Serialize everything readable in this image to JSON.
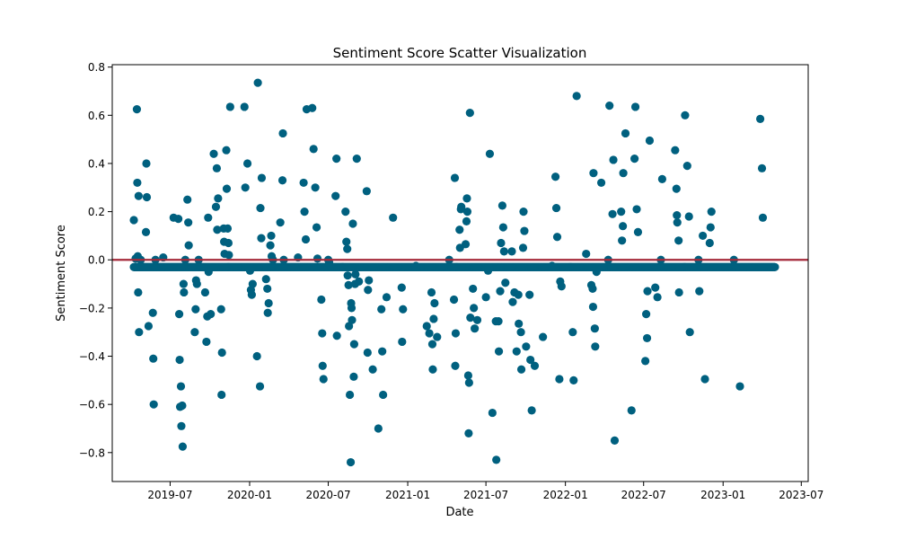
{
  "chart_data": {
    "type": "scatter",
    "title": "Sentiment Score Scatter Visualization",
    "xlabel": "Date",
    "ylabel": "Sentiment Score",
    "xlim": [
      "2019-02-17",
      "2023-07-17"
    ],
    "ylim": [
      -0.92,
      0.81
    ],
    "x_ticks": [
      "2019-07",
      "2020-01",
      "2020-07",
      "2021-01",
      "2021-07",
      "2022-01",
      "2022-07",
      "2023-01",
      "2023-07"
    ],
    "y_ticks": [
      0.8,
      0.6,
      0.4,
      0.2,
      0.0,
      -0.2,
      -0.4,
      -0.6,
      -0.8
    ],
    "y_tick_labels": [
      "0.8",
      "0.6",
      "0.4",
      "0.2",
      "0.0",
      "−0.2",
      "−0.4",
      "−0.6",
      "−0.8"
    ],
    "grid": false,
    "reference_line": {
      "y": 0.0
    },
    "colors": {
      "marker": "#00607f",
      "reference_line": "#a52a3a"
    },
    "baseline_band": {
      "from": "2019-04-08",
      "to": "2023-05-01",
      "y": -0.03
    },
    "series": [
      {
        "points": [
          [
            "2019-04-08",
            0.165
          ],
          [
            "2019-04-12",
            0.005
          ],
          [
            "2019-04-15",
            0.625
          ],
          [
            "2019-04-16",
            0.32
          ],
          [
            "2019-04-17",
            0.015
          ],
          [
            "2019-04-18",
            -0.135
          ],
          [
            "2019-04-19",
            0.265
          ],
          [
            "2019-04-20",
            -0.3
          ],
          [
            "2019-04-24",
            0.0
          ],
          [
            "2019-05-06",
            0.115
          ],
          [
            "2019-05-07",
            0.4
          ],
          [
            "2019-05-08",
            0.26
          ],
          [
            "2019-05-12",
            -0.275
          ],
          [
            "2019-05-22",
            -0.22
          ],
          [
            "2019-05-23",
            -0.41
          ],
          [
            "2019-05-24",
            -0.6
          ],
          [
            "2019-05-28",
            0.0
          ],
          [
            "2019-06-15",
            0.01
          ],
          [
            "2019-07-09",
            0.175
          ],
          [
            "2019-07-20",
            0.17
          ],
          [
            "2019-07-22",
            -0.225
          ],
          [
            "2019-07-23",
            -0.415
          ],
          [
            "2019-07-24",
            -0.61
          ],
          [
            "2019-07-26",
            -0.525
          ],
          [
            "2019-07-27",
            -0.69
          ],
          [
            "2019-07-29",
            -0.605
          ],
          [
            "2019-07-30",
            -0.775
          ],
          [
            "2019-08-01",
            -0.1
          ],
          [
            "2019-08-02",
            -0.135
          ],
          [
            "2019-08-05",
            0.0
          ],
          [
            "2019-08-10",
            0.25
          ],
          [
            "2019-08-12",
            0.155
          ],
          [
            "2019-08-13",
            0.06
          ],
          [
            "2019-08-27",
            -0.3
          ],
          [
            "2019-08-29",
            -0.205
          ],
          [
            "2019-08-30",
            -0.085
          ],
          [
            "2019-09-01",
            -0.1
          ],
          [
            "2019-09-05",
            0.0
          ],
          [
            "2019-09-20",
            -0.135
          ],
          [
            "2019-09-23",
            -0.34
          ],
          [
            "2019-09-25",
            -0.235
          ],
          [
            "2019-09-27",
            0.175
          ],
          [
            "2019-09-28",
            -0.05
          ],
          [
            "2019-10-03",
            -0.225
          ],
          [
            "2019-10-10",
            0.44
          ],
          [
            "2019-10-15",
            0.22
          ],
          [
            "2019-10-17",
            0.38
          ],
          [
            "2019-10-18",
            0.125
          ],
          [
            "2019-10-20",
            0.255
          ],
          [
            "2019-10-27",
            -0.205
          ],
          [
            "2019-10-28",
            -0.56
          ],
          [
            "2019-10-29",
            -0.385
          ],
          [
            "2019-11-02",
            0.13
          ],
          [
            "2019-11-03",
            0.075
          ],
          [
            "2019-11-04",
            0.025
          ],
          [
            "2019-11-08",
            0.455
          ],
          [
            "2019-11-09",
            0.295
          ],
          [
            "2019-11-11",
            0.13
          ],
          [
            "2019-11-13",
            0.07
          ],
          [
            "2019-11-14",
            0.02
          ],
          [
            "2019-11-17",
            0.635
          ],
          [
            "2019-12-20",
            0.635
          ],
          [
            "2019-12-22",
            0.3
          ],
          [
            "2019-12-27",
            0.4
          ],
          [
            "2020-01-02",
            -0.045
          ],
          [
            "2020-01-04",
            -0.125
          ],
          [
            "2020-01-06",
            -0.145
          ],
          [
            "2020-01-08",
            -0.1
          ],
          [
            "2020-01-18",
            -0.4
          ],
          [
            "2020-01-20",
            0.735
          ],
          [
            "2020-01-25",
            -0.525
          ],
          [
            "2020-01-26",
            0.215
          ],
          [
            "2020-01-28",
            0.09
          ],
          [
            "2020-01-29",
            0.34
          ],
          [
            "2020-02-08",
            -0.08
          ],
          [
            "2020-02-10",
            -0.03
          ],
          [
            "2020-02-11",
            -0.12
          ],
          [
            "2020-02-12",
            -0.22
          ],
          [
            "2020-02-14",
            -0.18
          ],
          [
            "2020-02-18",
            0.06
          ],
          [
            "2020-02-20",
            0.1
          ],
          [
            "2020-02-21",
            0.015
          ],
          [
            "2020-02-24",
            0.0
          ],
          [
            "2020-03-12",
            0.155
          ],
          [
            "2020-03-17",
            0.33
          ],
          [
            "2020-03-18",
            0.525
          ],
          [
            "2020-03-20",
            0.0
          ],
          [
            "2020-04-22",
            0.01
          ],
          [
            "2020-05-05",
            0.32
          ],
          [
            "2020-05-07",
            0.2
          ],
          [
            "2020-05-10",
            0.085
          ],
          [
            "2020-05-12",
            0.625
          ],
          [
            "2020-05-25",
            0.63
          ],
          [
            "2020-05-28",
            0.46
          ],
          [
            "2020-06-01",
            0.3
          ],
          [
            "2020-06-04",
            0.135
          ],
          [
            "2020-06-06",
            0.005
          ],
          [
            "2020-06-15",
            -0.165
          ],
          [
            "2020-06-17",
            -0.305
          ],
          [
            "2020-06-18",
            -0.44
          ],
          [
            "2020-06-20",
            -0.495
          ],
          [
            "2020-07-01",
            0.0
          ],
          [
            "2020-07-03",
            -0.01
          ],
          [
            "2020-07-18",
            0.265
          ],
          [
            "2020-07-20",
            0.42
          ],
          [
            "2020-07-21",
            -0.315
          ],
          [
            "2020-08-10",
            0.2
          ],
          [
            "2020-08-12",
            0.075
          ],
          [
            "2020-08-14",
            0.045
          ],
          [
            "2020-08-15",
            -0.065
          ],
          [
            "2020-08-17",
            -0.105
          ],
          [
            "2020-08-18",
            -0.275
          ],
          [
            "2020-08-20",
            -0.56
          ],
          [
            "2020-08-22",
            -0.84
          ],
          [
            "2020-08-23",
            -0.18
          ],
          [
            "2020-08-24",
            -0.2
          ],
          [
            "2020-08-25",
            -0.25
          ],
          [
            "2020-08-27",
            0.15
          ],
          [
            "2020-08-29",
            -0.485
          ],
          [
            "2020-08-30",
            -0.35
          ],
          [
            "2020-09-01",
            -0.1
          ],
          [
            "2020-09-02",
            -0.06
          ],
          [
            "2020-09-05",
            0.42
          ],
          [
            "2020-09-10",
            -0.09
          ],
          [
            "2020-09-28",
            0.285
          ],
          [
            "2020-09-30",
            -0.385
          ],
          [
            "2020-10-01",
            -0.125
          ],
          [
            "2020-10-03",
            -0.085
          ],
          [
            "2020-10-12",
            -0.455
          ],
          [
            "2020-10-25",
            -0.7
          ],
          [
            "2020-11-01",
            -0.205
          ],
          [
            "2020-11-03",
            -0.38
          ],
          [
            "2020-11-05",
            -0.56
          ],
          [
            "2020-11-13",
            -0.155
          ],
          [
            "2020-11-28",
            0.175
          ],
          [
            "2020-12-18",
            -0.115
          ],
          [
            "2020-12-19",
            -0.34
          ],
          [
            "2020-12-21",
            -0.205
          ],
          [
            "2021-01-20",
            -0.025
          ],
          [
            "2021-02-14",
            -0.275
          ],
          [
            "2021-02-20",
            -0.305
          ],
          [
            "2021-02-25",
            -0.135
          ],
          [
            "2021-02-27",
            -0.35
          ],
          [
            "2021-02-28",
            -0.455
          ],
          [
            "2021-03-02",
            -0.245
          ],
          [
            "2021-03-04",
            -0.18
          ],
          [
            "2021-03-10",
            -0.32
          ],
          [
            "2021-04-07",
            0.0
          ],
          [
            "2021-04-18",
            -0.165
          ],
          [
            "2021-04-20",
            0.34
          ],
          [
            "2021-04-21",
            -0.44
          ],
          [
            "2021-04-22",
            -0.305
          ],
          [
            "2021-05-01",
            0.125
          ],
          [
            "2021-05-02",
            0.05
          ],
          [
            "2021-05-04",
            0.21
          ],
          [
            "2021-05-05",
            0.22
          ],
          [
            "2021-05-15",
            0.065
          ],
          [
            "2021-05-17",
            0.16
          ],
          [
            "2021-05-18",
            0.255
          ],
          [
            "2021-05-19",
            0.2
          ],
          [
            "2021-05-21",
            -0.48
          ],
          [
            "2021-05-22",
            -0.72
          ],
          [
            "2021-05-23",
            -0.51
          ],
          [
            "2021-05-25",
            0.61
          ],
          [
            "2021-05-26",
            -0.24
          ],
          [
            "2021-06-01",
            -0.12
          ],
          [
            "2021-06-03",
            -0.2
          ],
          [
            "2021-06-05",
            -0.285
          ],
          [
            "2021-06-11",
            -0.25
          ],
          [
            "2021-07-01",
            -0.155
          ],
          [
            "2021-07-06",
            -0.045
          ],
          [
            "2021-07-10",
            0.44
          ],
          [
            "2021-07-16",
            -0.635
          ],
          [
            "2021-07-24",
            -0.255
          ],
          [
            "2021-07-25",
            -0.83
          ],
          [
            "2021-07-30",
            -0.255
          ],
          [
            "2021-07-31",
            -0.38
          ],
          [
            "2021-08-03",
            -0.13
          ],
          [
            "2021-08-05",
            0.07
          ],
          [
            "2021-08-08",
            0.225
          ],
          [
            "2021-08-10",
            0.135
          ],
          [
            "2021-08-12",
            0.035
          ],
          [
            "2021-08-15",
            -0.095
          ],
          [
            "2021-08-30",
            0.035
          ],
          [
            "2021-09-01",
            -0.175
          ],
          [
            "2021-09-05",
            -0.135
          ],
          [
            "2021-09-10",
            -0.38
          ],
          [
            "2021-09-14",
            -0.145
          ],
          [
            "2021-09-15",
            -0.265
          ],
          [
            "2021-09-20",
            -0.3
          ],
          [
            "2021-09-21",
            -0.455
          ],
          [
            "2021-09-25",
            0.05
          ],
          [
            "2021-09-26",
            0.2
          ],
          [
            "2021-09-28",
            0.12
          ],
          [
            "2021-10-02",
            -0.36
          ],
          [
            "2021-10-10",
            -0.145
          ],
          [
            "2021-10-12",
            -0.415
          ],
          [
            "2021-10-15",
            -0.625
          ],
          [
            "2021-10-22",
            -0.44
          ],
          [
            "2021-11-10",
            -0.32
          ],
          [
            "2021-12-01",
            -0.025
          ],
          [
            "2021-12-09",
            0.345
          ],
          [
            "2021-12-11",
            0.215
          ],
          [
            "2021-12-13",
            0.095
          ],
          [
            "2021-12-18",
            -0.495
          ],
          [
            "2021-12-20",
            -0.09
          ],
          [
            "2021-12-23",
            -0.11
          ],
          [
            "2022-01-18",
            -0.3
          ],
          [
            "2022-01-20",
            -0.5
          ],
          [
            "2022-01-27",
            0.68
          ],
          [
            "2022-02-18",
            0.025
          ],
          [
            "2022-03-02",
            -0.105
          ],
          [
            "2022-03-05",
            -0.12
          ],
          [
            "2022-03-06",
            -0.195
          ],
          [
            "2022-03-07",
            0.36
          ],
          [
            "2022-03-10",
            -0.285
          ],
          [
            "2022-03-11",
            -0.36
          ],
          [
            "2022-03-14",
            -0.05
          ],
          [
            "2022-03-25",
            0.32
          ],
          [
            "2022-04-10",
            0.0
          ],
          [
            "2022-04-13",
            0.64
          ],
          [
            "2022-04-20",
            0.19
          ],
          [
            "2022-04-22",
            0.415
          ],
          [
            "2022-04-25",
            -0.75
          ],
          [
            "2022-05-10",
            0.2
          ],
          [
            "2022-05-12",
            0.08
          ],
          [
            "2022-05-14",
            0.14
          ],
          [
            "2022-05-15",
            0.36
          ],
          [
            "2022-05-20",
            0.525
          ],
          [
            "2022-06-03",
            -0.625
          ],
          [
            "2022-06-10",
            0.42
          ],
          [
            "2022-06-12",
            0.635
          ],
          [
            "2022-06-15",
            0.21
          ],
          [
            "2022-06-18",
            0.115
          ],
          [
            "2022-07-05",
            -0.42
          ],
          [
            "2022-07-07",
            -0.225
          ],
          [
            "2022-07-09",
            -0.325
          ],
          [
            "2022-07-10",
            -0.13
          ],
          [
            "2022-07-15",
            0.495
          ],
          [
            "2022-07-28",
            -0.115
          ],
          [
            "2022-08-02",
            -0.155
          ],
          [
            "2022-08-10",
            0.0
          ],
          [
            "2022-08-13",
            0.335
          ],
          [
            "2022-09-12",
            0.455
          ],
          [
            "2022-09-15",
            0.295
          ],
          [
            "2022-09-16",
            0.185
          ],
          [
            "2022-09-17",
            0.155
          ],
          [
            "2022-09-20",
            0.08
          ],
          [
            "2022-09-21",
            -0.135
          ],
          [
            "2022-10-05",
            0.6
          ],
          [
            "2022-10-10",
            0.39
          ],
          [
            "2022-10-14",
            0.18
          ],
          [
            "2022-10-16",
            -0.3
          ],
          [
            "2022-11-05",
            0.0
          ],
          [
            "2022-11-07",
            -0.13
          ],
          [
            "2022-11-15",
            0.1
          ],
          [
            "2022-11-20",
            -0.495
          ],
          [
            "2022-12-01",
            0.07
          ],
          [
            "2022-12-03",
            0.135
          ],
          [
            "2022-12-05",
            0.2
          ],
          [
            "2023-01-26",
            0.0
          ],
          [
            "2023-02-09",
            -0.525
          ],
          [
            "2023-03-28",
            0.585
          ],
          [
            "2023-04-01",
            0.38
          ],
          [
            "2023-04-03",
            0.175
          ]
        ]
      }
    ]
  }
}
